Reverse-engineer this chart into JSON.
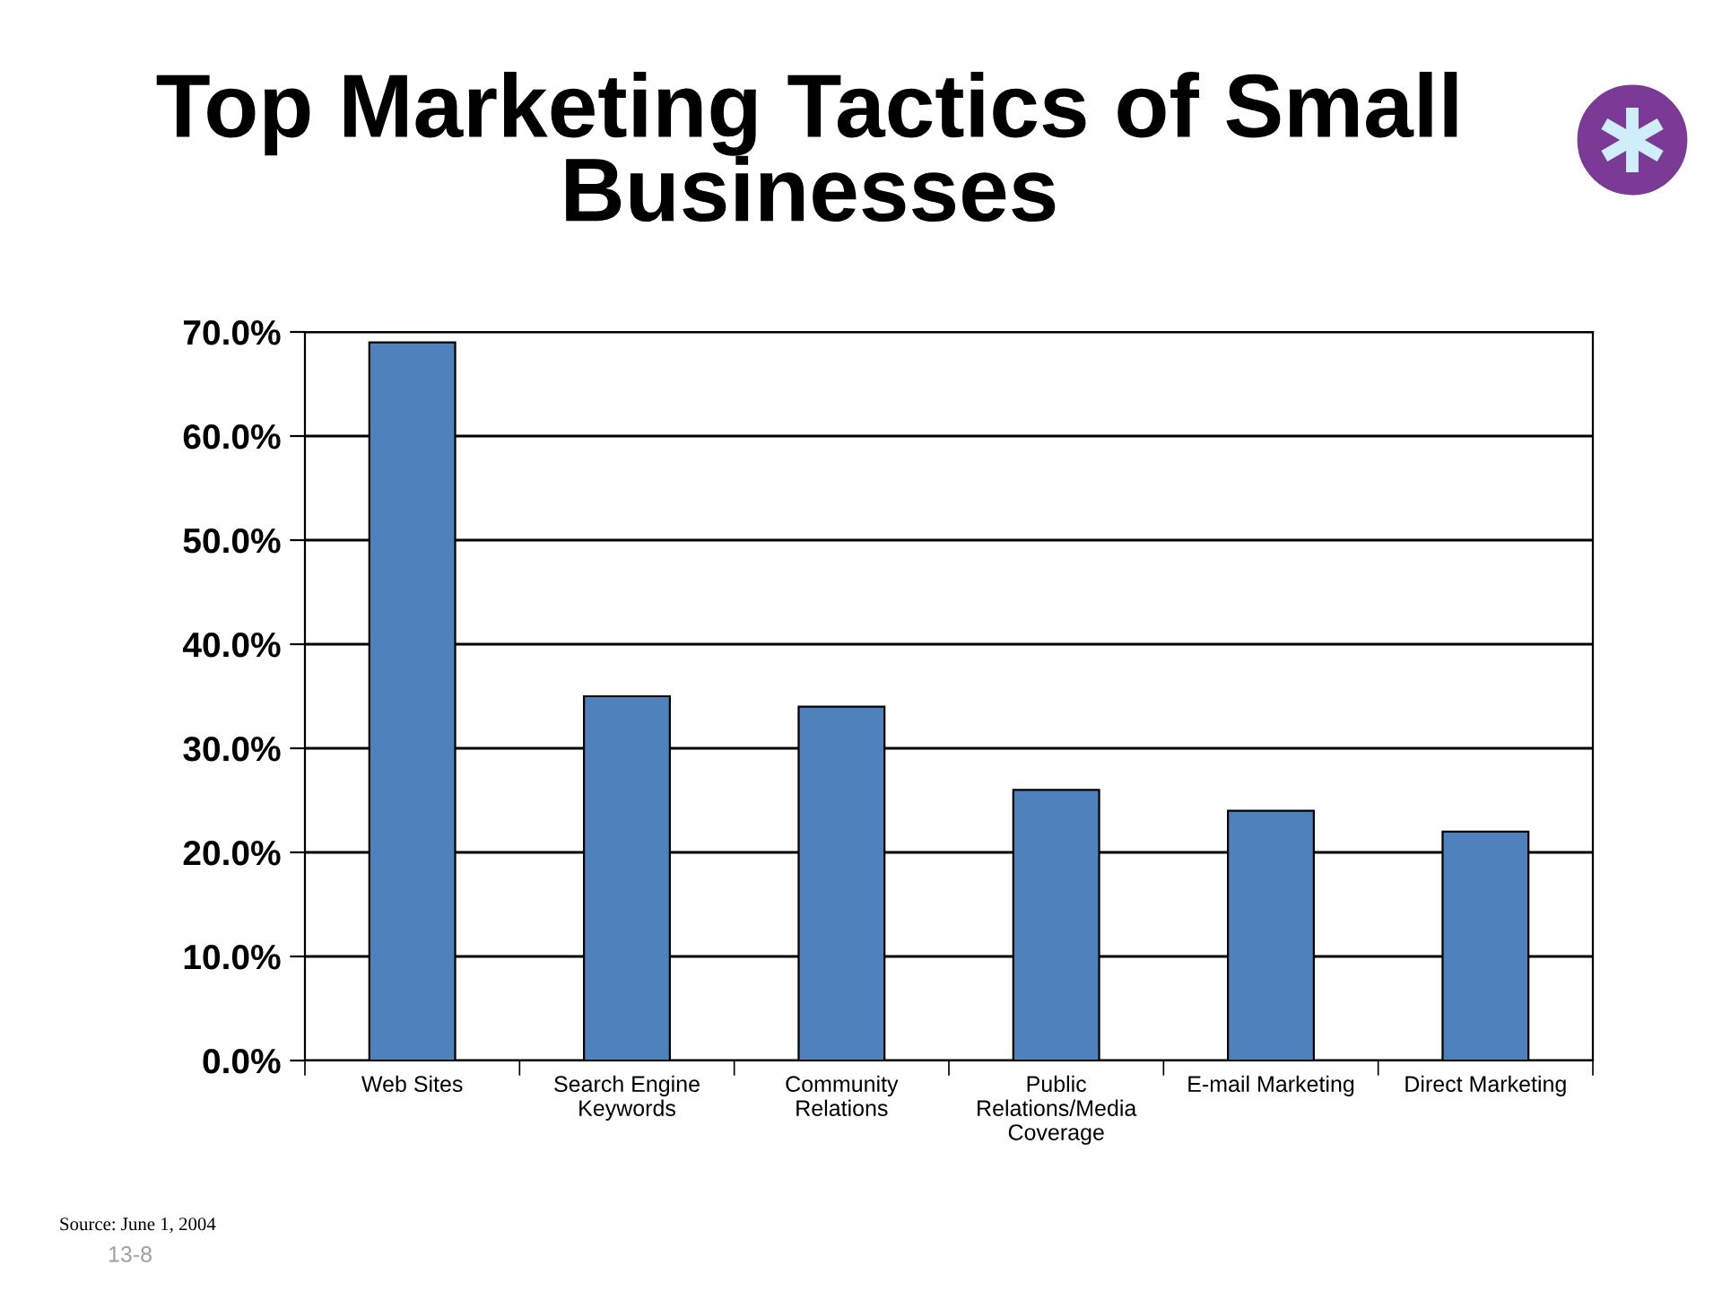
{
  "chart_data": {
    "type": "bar",
    "title": "Top Marketing Tactics of Small\nBusinesses",
    "categories": [
      "Web Sites",
      "Search Engine\nKeywords",
      "Community\nRelations",
      "Public\nRelations/Media\nCoverage",
      "E-mail Marketing",
      "Direct Marketing"
    ],
    "values": [
      69,
      35,
      34,
      26,
      24,
      22
    ],
    "color": "#4f81bd",
    "ylim": [
      0,
      70
    ],
    "yticks": [
      {
        "value": 0,
        "label": "0.0%"
      },
      {
        "value": 10,
        "label": "10.0%"
      },
      {
        "value": 20,
        "label": "20.0%"
      },
      {
        "value": 30,
        "label": "30.0%"
      },
      {
        "value": 40,
        "label": "40.0%"
      },
      {
        "value": 50,
        "label": "50.0%"
      },
      {
        "value": 60,
        "label": "60.0%"
      },
      {
        "value": 70,
        "label": "70.0%"
      }
    ],
    "grid": "y",
    "annotations": [
      "Source: June 1, 2004",
      "13-8"
    ]
  }
}
